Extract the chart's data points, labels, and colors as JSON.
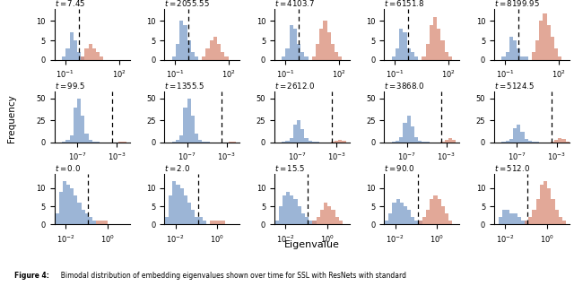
{
  "rows": [
    {
      "t_values": [
        7.45,
        2055.55,
        4103.7,
        6151.8,
        8199.95
      ],
      "xlim": [
        0.025,
        400
      ],
      "log_xlim_min": -1.6,
      "log_xlim_max": 2.6,
      "xticks": [
        0.1,
        100
      ],
      "xticklabels": [
        "$10^{-1}$",
        "$10^{2}$"
      ],
      "dashed_x": 0.55,
      "ylim_max": 13,
      "yticks": [
        0,
        5,
        10
      ],
      "blue_bins": [
        [
          0,
          0,
          1,
          3,
          7,
          5,
          2,
          1,
          0,
          0,
          0,
          0,
          0,
          0,
          0,
          0,
          0,
          0,
          0,
          0
        ],
        [
          0,
          0,
          1,
          4,
          10,
          9,
          5,
          2,
          1,
          0,
          0,
          0,
          0,
          0,
          0,
          0,
          0,
          0,
          0,
          0
        ],
        [
          0,
          0,
          1,
          3,
          9,
          8,
          4,
          2,
          1,
          0,
          0,
          0,
          0,
          0,
          0,
          0,
          0,
          0,
          0,
          0
        ],
        [
          0,
          0,
          1,
          3,
          8,
          7,
          3,
          2,
          1,
          0,
          0,
          0,
          0,
          0,
          0,
          0,
          0,
          0,
          0,
          0
        ],
        [
          0,
          0,
          1,
          2,
          6,
          5,
          3,
          1,
          1,
          0,
          0,
          0,
          0,
          0,
          0,
          0,
          0,
          0,
          0,
          0
        ]
      ],
      "red_bins": [
        [
          0,
          0,
          0,
          0,
          0,
          0,
          0,
          1,
          3,
          4,
          3,
          2,
          1,
          0,
          0,
          0,
          0,
          0,
          0,
          0
        ],
        [
          0,
          0,
          0,
          0,
          0,
          0,
          0,
          0,
          0,
          0,
          1,
          3,
          5,
          6,
          4,
          2,
          1,
          0,
          0,
          0
        ],
        [
          0,
          0,
          0,
          0,
          0,
          0,
          0,
          0,
          0,
          0,
          1,
          4,
          8,
          10,
          7,
          4,
          2,
          1,
          0,
          0
        ],
        [
          0,
          0,
          0,
          0,
          0,
          0,
          0,
          0,
          0,
          0,
          1,
          4,
          9,
          11,
          8,
          5,
          2,
          1,
          0,
          0
        ],
        [
          0,
          0,
          0,
          0,
          0,
          0,
          0,
          0,
          0,
          0,
          2,
          5,
          10,
          12,
          9,
          6,
          3,
          1,
          0,
          0
        ]
      ]
    },
    {
      "t_values": [
        99.5,
        1355.5,
        2612.0,
        3868.0,
        5124.5
      ],
      "xlim": [
        5e-10,
        0.02
      ],
      "log_xlim_min": -9.3,
      "log_xlim_max": -1.7,
      "xticks": [
        1e-07,
        0.001
      ],
      "xticklabels": [
        "$10^{-7}$",
        "$10^{-3}$"
      ],
      "dashed_x": 0.0003,
      "ylim_max": 58,
      "yticks": [
        0,
        25,
        50
      ],
      "blue_bins": [
        [
          0,
          0,
          1,
          3,
          8,
          40,
          50,
          30,
          10,
          3,
          1,
          1,
          0,
          0,
          0,
          0,
          0,
          0,
          0,
          0
        ],
        [
          0,
          0,
          1,
          3,
          8,
          40,
          50,
          30,
          10,
          3,
          1,
          1,
          0,
          0,
          0,
          0,
          0,
          0,
          0,
          0
        ],
        [
          0,
          0,
          1,
          2,
          5,
          20,
          25,
          15,
          5,
          2,
          1,
          1,
          0,
          0,
          0,
          0,
          0,
          0,
          0,
          0
        ],
        [
          0,
          0,
          1,
          2,
          6,
          22,
          30,
          18,
          6,
          2,
          1,
          1,
          0,
          0,
          0,
          0,
          0,
          0,
          0,
          0
        ],
        [
          0,
          0,
          1,
          2,
          4,
          16,
          20,
          12,
          4,
          2,
          1,
          1,
          0,
          0,
          0,
          0,
          0,
          0,
          0,
          0
        ]
      ],
      "red_bins": [
        [
          0,
          0,
          0,
          0,
          0,
          0,
          0,
          0,
          0,
          0,
          0,
          0,
          0,
          0,
          0,
          0,
          0,
          1,
          1,
          0
        ],
        [
          0,
          0,
          0,
          0,
          0,
          0,
          0,
          0,
          0,
          0,
          0,
          0,
          0,
          0,
          0,
          0,
          0,
          1,
          1,
          0
        ],
        [
          0,
          0,
          0,
          0,
          0,
          0,
          0,
          0,
          0,
          0,
          0,
          0,
          0,
          0,
          0,
          1,
          2,
          3,
          2,
          0
        ],
        [
          0,
          0,
          0,
          0,
          0,
          0,
          0,
          0,
          0,
          0,
          0,
          0,
          0,
          0,
          0,
          1,
          3,
          5,
          3,
          0
        ],
        [
          0,
          0,
          0,
          0,
          0,
          0,
          0,
          0,
          0,
          0,
          0,
          0,
          0,
          0,
          0,
          1,
          3,
          5,
          4,
          1
        ]
      ]
    },
    {
      "t_values": [
        0.0,
        2.0,
        15.5,
        90.0,
        512.0
      ],
      "xlim": [
        0.003,
        12
      ],
      "log_xlim_min": -2.5,
      "log_xlim_max": 1.1,
      "xticks": [
        0.01,
        1.0
      ],
      "xticklabels": [
        "$10^{-2}$",
        "$10^{0}$"
      ],
      "dashed_x": 0.12,
      "ylim_max": 14,
      "yticks": [
        0,
        5,
        10
      ],
      "blue_bins": [
        [
          3,
          9,
          12,
          11,
          10,
          8,
          6,
          4,
          3,
          2,
          1,
          0,
          0,
          0,
          0,
          0,
          0,
          0,
          0,
          0
        ],
        [
          2,
          8,
          12,
          11,
          10,
          8,
          6,
          4,
          2,
          2,
          1,
          0,
          0,
          0,
          0,
          0,
          0,
          0,
          0,
          0
        ],
        [
          1,
          5,
          8,
          9,
          8,
          7,
          5,
          3,
          2,
          1,
          1,
          0,
          0,
          0,
          0,
          0,
          0,
          0,
          0,
          0
        ],
        [
          1,
          3,
          6,
          7,
          6,
          5,
          4,
          2,
          1,
          1,
          0,
          0,
          0,
          0,
          0,
          0,
          0,
          0,
          0,
          0
        ],
        [
          0,
          2,
          4,
          4,
          3,
          3,
          2,
          1,
          1,
          0,
          0,
          0,
          0,
          0,
          0,
          0,
          0,
          0,
          0,
          0
        ]
      ],
      "red_bins": [
        [
          0,
          0,
          0,
          0,
          0,
          0,
          0,
          0,
          0,
          0,
          0,
          1,
          1,
          1,
          0,
          0,
          0,
          0,
          0,
          0
        ],
        [
          0,
          0,
          0,
          0,
          0,
          0,
          0,
          0,
          0,
          0,
          0,
          0,
          1,
          1,
          1,
          1,
          0,
          0,
          0,
          0
        ],
        [
          0,
          0,
          0,
          0,
          0,
          0,
          0,
          0,
          0,
          0,
          1,
          2,
          4,
          6,
          5,
          4,
          2,
          1,
          0,
          0
        ],
        [
          0,
          0,
          0,
          0,
          0,
          0,
          0,
          0,
          0,
          1,
          2,
          4,
          7,
          8,
          7,
          5,
          3,
          1,
          0,
          0
        ],
        [
          0,
          0,
          0,
          0,
          0,
          0,
          0,
          0,
          1,
          2,
          4,
          7,
          11,
          12,
          10,
          7,
          4,
          2,
          1,
          0
        ]
      ]
    }
  ],
  "blue_color": "#7B9DC9",
  "red_color": "#D98B76",
  "blue_alpha": 0.75,
  "red_alpha": 0.75,
  "xlabel": "Eigenvalue",
  "ylabel": "Frequency",
  "caption_bold": "Figure 4:",
  "caption_normal": "  Bimodal distribution of embedding eigenvalues shown over time for SSL with ResNets with standard",
  "n_bins": 20
}
